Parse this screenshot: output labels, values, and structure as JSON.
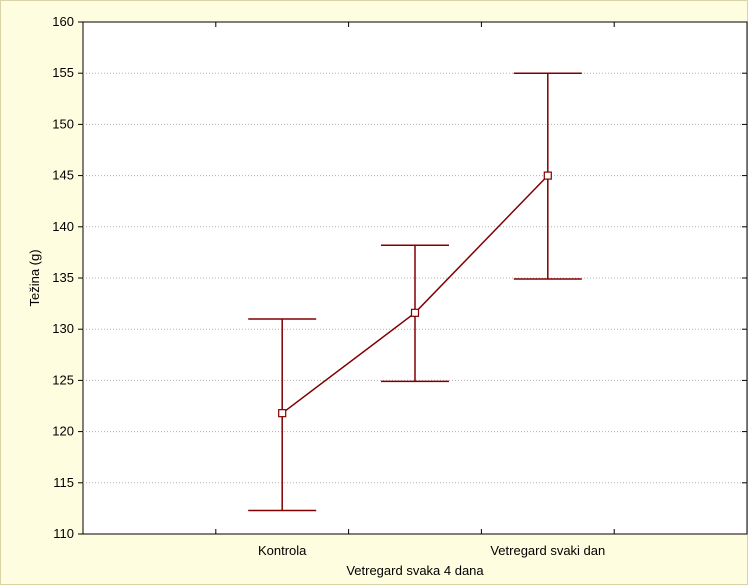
{
  "chart_data": {
    "type": "line",
    "title": "",
    "xlabel": "Vetregard svaka 4 dana",
    "ylabel": "Težina (g)",
    "ylim": [
      110,
      160
    ],
    "yticks": [
      110,
      115,
      120,
      125,
      130,
      135,
      140,
      145,
      150,
      155,
      160
    ],
    "grid": "horizontal",
    "categories": [
      "Kontrola",
      "",
      "Vetregard svaki dan"
    ],
    "series": [
      {
        "values": [
          121.8,
          131.6,
          145.0
        ],
        "lower": [
          112.3,
          124.9,
          134.9
        ],
        "upper": [
          131.0,
          138.2,
          155.0
        ],
        "color": "#800000"
      }
    ]
  },
  "colors": {
    "background": "#fffde0",
    "plot_area": "#ffffff",
    "series": "#800000",
    "grid": "#b0b0b0"
  }
}
